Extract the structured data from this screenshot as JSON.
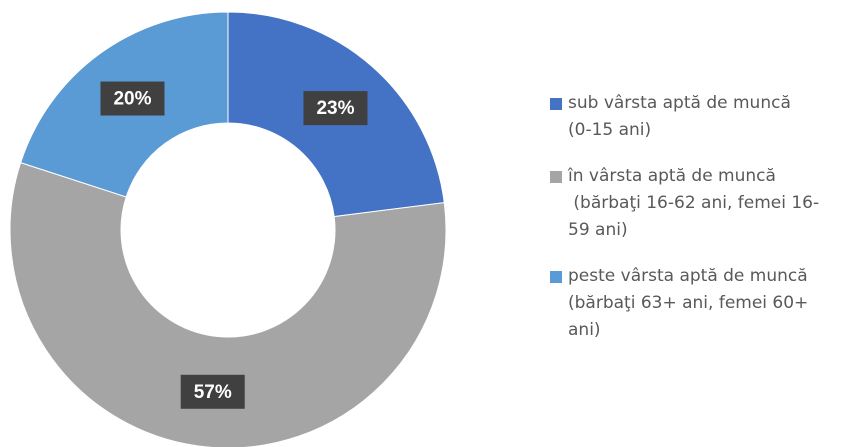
{
  "chart_data": {
    "type": "donut",
    "categories": [
      "sub vârsta aptă de muncă\n(0-15 ani)",
      "în vârsta aptă de muncă\n (bărbaţi 16-62 ani, femei 16-\n59 ani)",
      "peste vârsta aptă de muncă\n(bărbaţi 63+ ani, femei 60+\nani)"
    ],
    "values": [
      23,
      57,
      20
    ],
    "value_labels": [
      "23%",
      "57%",
      "20%"
    ],
    "colors": [
      "#4472c4",
      "#a5a5a5",
      "#5b9bd5"
    ],
    "legend": "right"
  }
}
